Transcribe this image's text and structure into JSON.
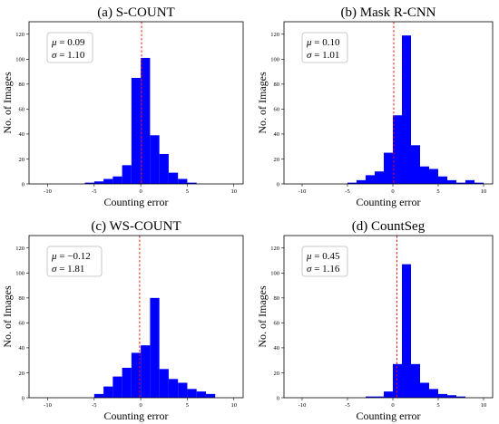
{
  "chart_data": [
    {
      "type": "bar",
      "title": "(a) S-COUNT",
      "xlabel": "Counting error",
      "ylabel": "No. of Images",
      "xlim": [
        -12,
        11
      ],
      "ylim": [
        0,
        130
      ],
      "xticks": [
        -10,
        -5,
        0,
        5,
        10
      ],
      "yticks": [
        0,
        20,
        40,
        60,
        80,
        100,
        120
      ],
      "bin_width": 1,
      "bins": [
        -6,
        -5,
        -4,
        -3,
        -2,
        -1,
        0,
        1,
        2,
        3,
        4,
        5
      ],
      "values": [
        1,
        2,
        4,
        6,
        15,
        85,
        101,
        39,
        24,
        9,
        4,
        1
      ],
      "mean_line": 0.09,
      "stats": {
        "mu": "0.09",
        "sigma": "1.10"
      }
    },
    {
      "type": "bar",
      "title": "(b) Mask R-CNN",
      "xlabel": "Counting error",
      "ylabel": "No. of Images",
      "xlim": [
        -12,
        11
      ],
      "ylim": [
        0,
        130
      ],
      "xticks": [
        -10,
        -5,
        0,
        5,
        10
      ],
      "yticks": [
        0,
        20,
        40,
        60,
        80,
        100,
        120
      ],
      "bin_width": 1,
      "bins": [
        -5,
        -4,
        -3,
        -2,
        -1,
        0,
        1,
        2,
        3,
        4,
        5,
        6,
        7,
        8,
        9
      ],
      "values": [
        1,
        3,
        7,
        10,
        25,
        55,
        119,
        31,
        14,
        12,
        6,
        3,
        1,
        3,
        1
      ],
      "mean_line": 0.1,
      "stats": {
        "mu": "0.10",
        "sigma": "1.01"
      }
    },
    {
      "type": "bar",
      "title": "(c) WS-COUNT",
      "xlabel": "Counting error",
      "ylabel": "No. of Images",
      "xlim": [
        -12,
        11
      ],
      "ylim": [
        0,
        130
      ],
      "xticks": [
        -10,
        -5,
        0,
        5,
        10
      ],
      "yticks": [
        0,
        20,
        40,
        60,
        80,
        100,
        120
      ],
      "bin_width": 1,
      "bins": [
        -5,
        -4,
        -3,
        -2,
        -1,
        0,
        1,
        2,
        3,
        4,
        5,
        6,
        7
      ],
      "values": [
        3,
        9,
        17,
        24,
        36,
        42,
        80,
        23,
        15,
        12,
        7,
        5,
        3
      ],
      "mean_line": -0.12,
      "stats": {
        "mu": "−0.12",
        "sigma": "1.81"
      }
    },
    {
      "type": "bar",
      "title": "(d) CountSeg",
      "xlabel": "Counting error",
      "ylabel": "No. of Images",
      "xlim": [
        -12,
        11
      ],
      "ylim": [
        0,
        130
      ],
      "xticks": [
        -10,
        -5,
        0,
        5,
        10
      ],
      "yticks": [
        0,
        20,
        40,
        60,
        80,
        100,
        120
      ],
      "bin_width": 1,
      "bins": [
        -3,
        -2,
        -1,
        0,
        1,
        2,
        3,
        4,
        5,
        6,
        7
      ],
      "values": [
        1,
        1,
        5,
        27,
        107,
        27,
        12,
        7,
        3,
        2,
        1
      ],
      "mean_line": 0.45,
      "stats": {
        "mu": "0.45",
        "sigma": "1.16"
      }
    }
  ]
}
